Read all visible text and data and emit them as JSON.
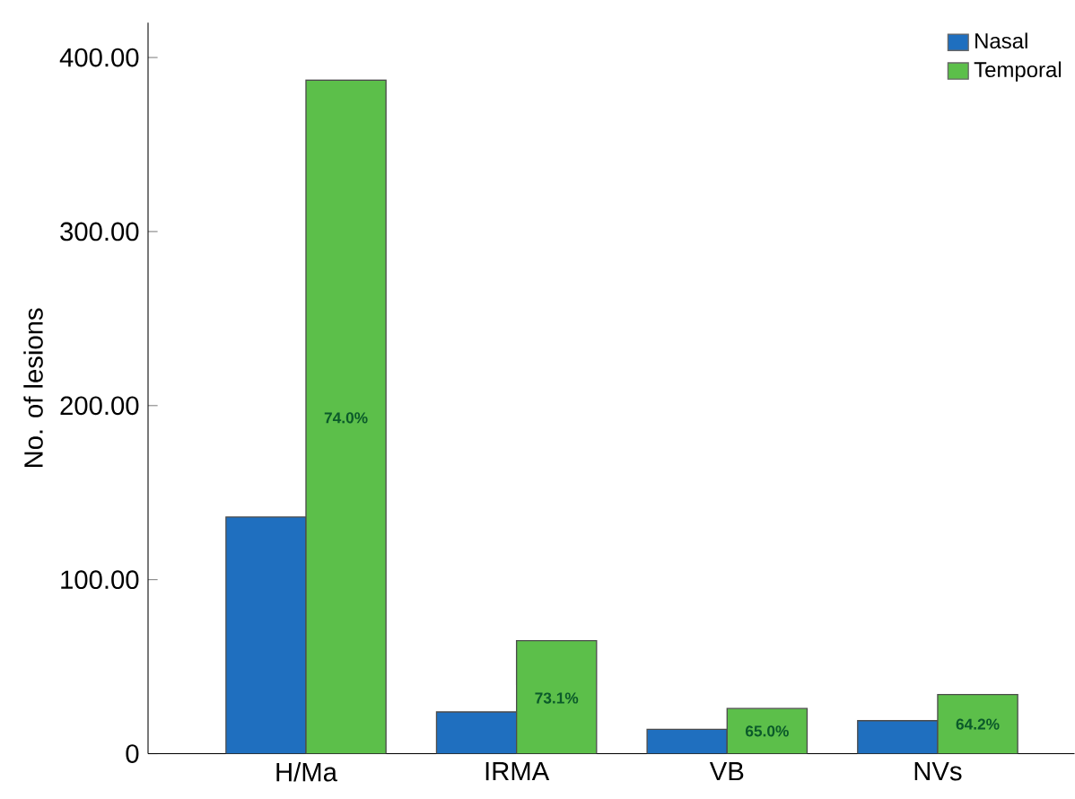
{
  "chart_data": {
    "type": "bar",
    "ylabel": "No. of lesions",
    "categories": [
      "H/Ma",
      "IRMA",
      "VB",
      "NVs"
    ],
    "series": [
      {
        "name": "Nasal",
        "color": "#1f6fbf",
        "values": [
          136,
          24,
          14,
          19
        ]
      },
      {
        "name": "Temporal",
        "color": "#5cbf4a",
        "values": [
          387,
          65,
          26,
          34
        ]
      }
    ],
    "annotations": [
      {
        "text": "74.0%",
        "x": "H/Ma",
        "y": 193
      },
      {
        "text": "73.1%",
        "x": "IRMA",
        "y": 32
      },
      {
        "text": "65.0%",
        "x": "VB",
        "y": 13
      },
      {
        "text": "64.2%",
        "x": "NVs",
        "y": 17
      }
    ],
    "ylim": [
      0,
      420
    ],
    "yticks": [
      {
        "value": 0,
        "label": "0"
      },
      {
        "value": 100,
        "label": "100.00"
      },
      {
        "value": 200,
        "label": "200.00"
      },
      {
        "value": 300,
        "label": "300.00"
      },
      {
        "value": 400,
        "label": "400.00"
      }
    ],
    "legend": "top right",
    "grid": false
  }
}
